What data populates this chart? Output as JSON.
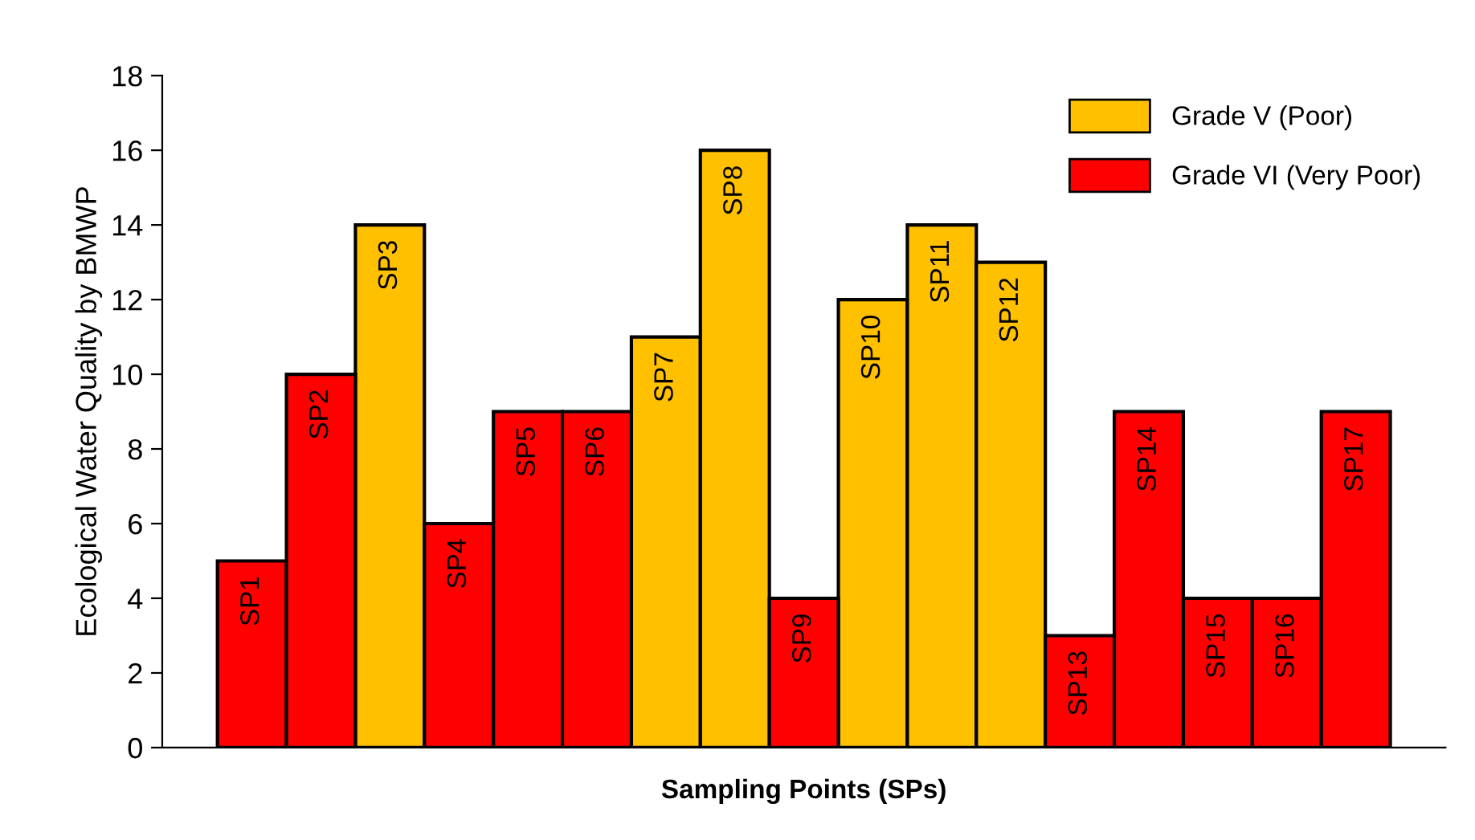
{
  "chart_data": {
    "type": "bar",
    "stacked": true,
    "xlabel": "Sampling Points (SPs)",
    "ylabel": "Ecological Water Quality by BMWP",
    "categories": [
      "SP1",
      "SP2",
      "SP3",
      "SP4",
      "SP5",
      "SP6",
      "SP7",
      "SP8",
      "SP9",
      "SP10",
      "SP11",
      "SP12",
      "SP13",
      "SP14",
      "SP15",
      "SP16",
      "SP17"
    ],
    "series": [
      {
        "name": "Grade V (Poor)",
        "color": "#ffc000",
        "values": [
          null,
          null,
          14,
          null,
          null,
          null,
          11,
          16,
          null,
          12,
          14,
          13,
          null,
          null,
          null,
          null,
          null
        ]
      },
      {
        "name": "Grade VI (Very Poor)",
        "color": "#ff0000",
        "values": [
          5,
          10,
          null,
          6,
          9,
          9,
          null,
          null,
          4,
          null,
          null,
          null,
          3,
          9,
          4,
          4,
          9
        ]
      }
    ],
    "ylim": [
      0,
      18
    ],
    "yticks": [
      0,
      2,
      4,
      6,
      8,
      10,
      12,
      14,
      16,
      18
    ],
    "grid": false,
    "legend": "top right"
  }
}
